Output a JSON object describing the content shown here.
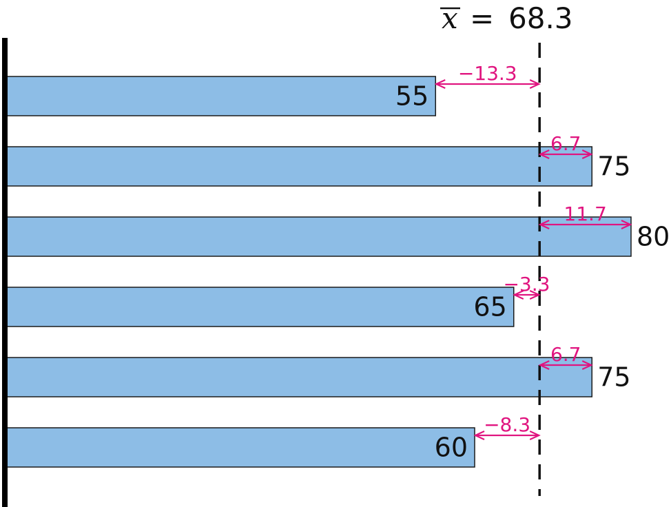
{
  "chart_data": {
    "type": "bar",
    "orientation": "horizontal",
    "values": [
      55,
      75,
      80,
      65,
      75,
      60
    ],
    "deviation_labels": [
      "−13.3",
      "6.7",
      "11.7",
      "−3.3",
      "6.7",
      "−8.3"
    ],
    "mean": {
      "symbol": "x",
      "operator": "=",
      "value": "68.3"
    },
    "xlim": [
      0,
      80
    ],
    "colors": {
      "bar": "#8dbde6",
      "deviation": "#e0147f",
      "mean_line": "#111111"
    },
    "grid": false
  }
}
